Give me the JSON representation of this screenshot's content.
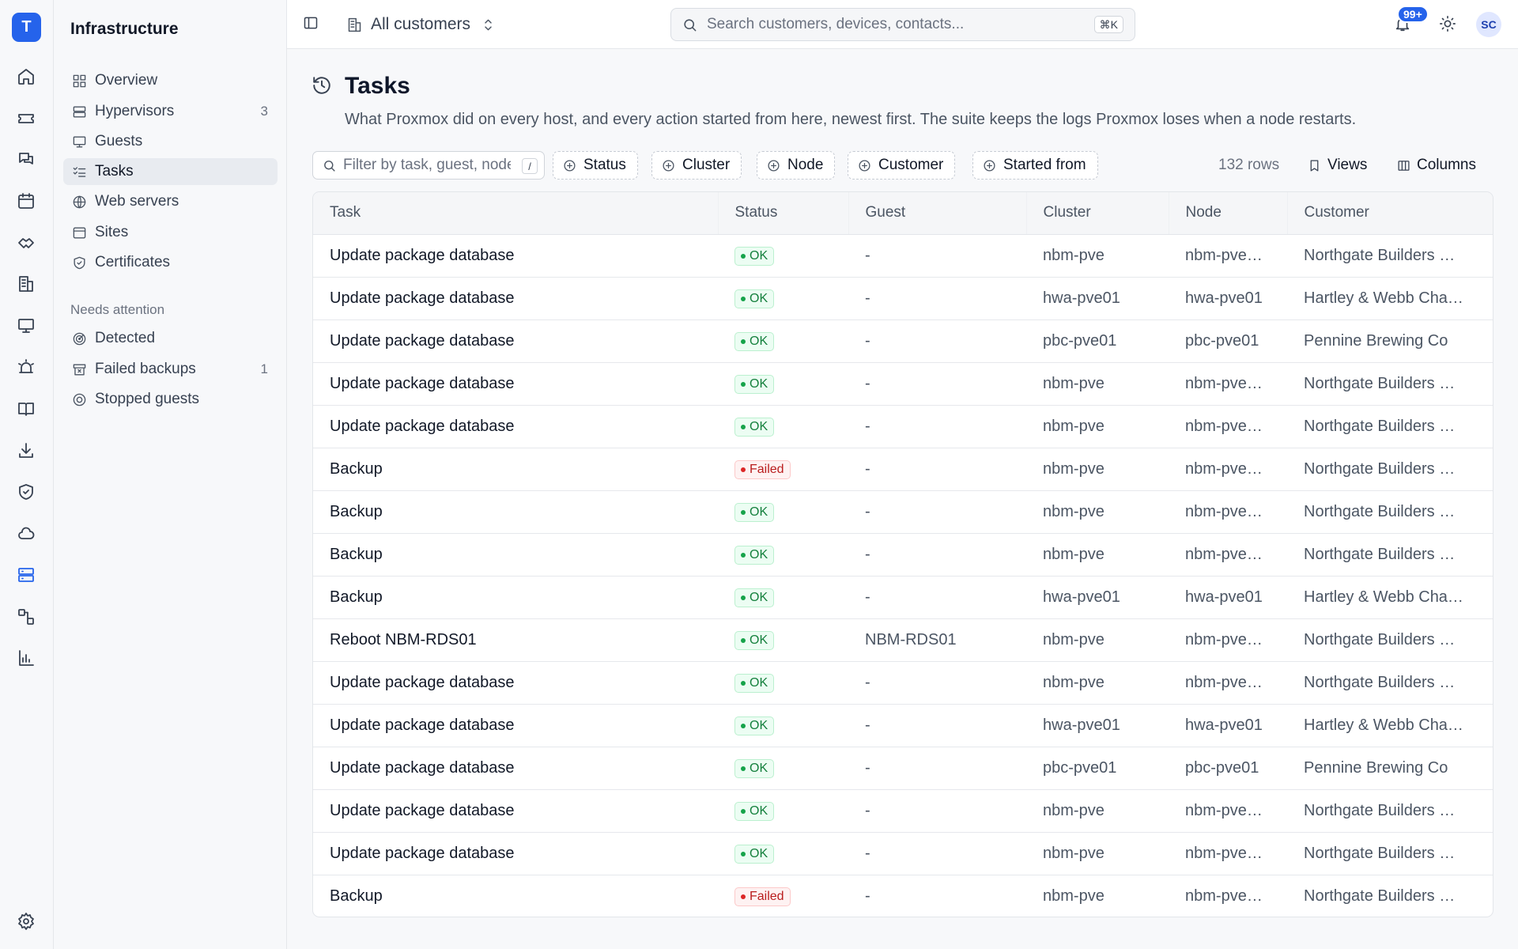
{
  "app": {
    "logo_letter": "T"
  },
  "sidebar": {
    "title": "Infrastructure",
    "items": [
      {
        "label": "Overview",
        "icon": "grid-icon",
        "count": ""
      },
      {
        "label": "Hypervisors",
        "icon": "server-icon",
        "count": "3"
      },
      {
        "label": "Guests",
        "icon": "monitor-icon",
        "count": ""
      },
      {
        "label": "Tasks",
        "icon": "checklist-icon",
        "count": "",
        "active": true
      },
      {
        "label": "Web servers",
        "icon": "globe-icon",
        "count": ""
      },
      {
        "label": "Sites",
        "icon": "browser-icon",
        "count": ""
      },
      {
        "label": "Certificates",
        "icon": "shield-check-icon",
        "count": ""
      }
    ],
    "section_label": "Needs attention",
    "attention_items": [
      {
        "label": "Detected",
        "icon": "radar-icon",
        "count": ""
      },
      {
        "label": "Failed backups",
        "icon": "archive-x-icon",
        "count": "1"
      },
      {
        "label": "Stopped guests",
        "icon": "stop-circle-icon",
        "count": ""
      }
    ]
  },
  "topbar": {
    "customer_switch": "All customers",
    "search_placeholder": "Search customers, devices, contacts...",
    "search_shortcut": "⌘K",
    "notification_count": "99+",
    "avatar_initials": "SC"
  },
  "page": {
    "title": "Tasks",
    "description": "What Proxmox did on every host, and every action started from here, newest first. The suite keeps the logs Proxmox loses when a node restarts."
  },
  "filters": {
    "filter_placeholder": "Filter by task, guest, node...",
    "filter_shortcut": "/",
    "chips": [
      "Status",
      "Cluster",
      "Node",
      "Customer",
      "Started from"
    ],
    "row_count": "132 rows",
    "views_label": "Views",
    "columns_label": "Columns"
  },
  "table": {
    "headers": {
      "task": "Task",
      "status": "Status",
      "guest": "Guest",
      "cluster": "Cluster",
      "node": "Node",
      "customer": "Customer"
    },
    "rows": [
      {
        "task": "Update package database",
        "status": "OK",
        "guest": "-",
        "cluster": "nbm-pve",
        "node": "nbm-pve…",
        "customer": "Northgate Builders …"
      },
      {
        "task": "Update package database",
        "status": "OK",
        "guest": "-",
        "cluster": "hwa-pve01",
        "node": "hwa-pve01",
        "customer": "Hartley & Webb Cha…"
      },
      {
        "task": "Update package database",
        "status": "OK",
        "guest": "-",
        "cluster": "pbc-pve01",
        "node": "pbc-pve01",
        "customer": "Pennine Brewing Co"
      },
      {
        "task": "Update package database",
        "status": "OK",
        "guest": "-",
        "cluster": "nbm-pve",
        "node": "nbm-pve…",
        "customer": "Northgate Builders …"
      },
      {
        "task": "Update package database",
        "status": "OK",
        "guest": "-",
        "cluster": "nbm-pve",
        "node": "nbm-pve…",
        "customer": "Northgate Builders …"
      },
      {
        "task": "Backup",
        "status": "Failed",
        "guest": "-",
        "cluster": "nbm-pve",
        "node": "nbm-pve…",
        "customer": "Northgate Builders …"
      },
      {
        "task": "Backup",
        "status": "OK",
        "guest": "-",
        "cluster": "nbm-pve",
        "node": "nbm-pve…",
        "customer": "Northgate Builders …"
      },
      {
        "task": "Backup",
        "status": "OK",
        "guest": "-",
        "cluster": "nbm-pve",
        "node": "nbm-pve…",
        "customer": "Northgate Builders …"
      },
      {
        "task": "Backup",
        "status": "OK",
        "guest": "-",
        "cluster": "hwa-pve01",
        "node": "hwa-pve01",
        "customer": "Hartley & Webb Cha…"
      },
      {
        "task": "Reboot NBM-RDS01",
        "status": "OK",
        "guest": "NBM-RDS01",
        "cluster": "nbm-pve",
        "node": "nbm-pve…",
        "customer": "Northgate Builders …"
      },
      {
        "task": "Update package database",
        "status": "OK",
        "guest": "-",
        "cluster": "nbm-pve",
        "node": "nbm-pve…",
        "customer": "Northgate Builders …"
      },
      {
        "task": "Update package database",
        "status": "OK",
        "guest": "-",
        "cluster": "hwa-pve01",
        "node": "hwa-pve01",
        "customer": "Hartley & Webb Cha…"
      },
      {
        "task": "Update package database",
        "status": "OK",
        "guest": "-",
        "cluster": "pbc-pve01",
        "node": "pbc-pve01",
        "customer": "Pennine Brewing Co"
      },
      {
        "task": "Update package database",
        "status": "OK",
        "guest": "-",
        "cluster": "nbm-pve",
        "node": "nbm-pve…",
        "customer": "Northgate Builders …"
      },
      {
        "task": "Update package database",
        "status": "OK",
        "guest": "-",
        "cluster": "nbm-pve",
        "node": "nbm-pve…",
        "customer": "Northgate Builders …"
      },
      {
        "task": "Backup",
        "status": "Failed",
        "guest": "-",
        "cluster": "nbm-pve",
        "node": "nbm-pve…",
        "customer": "Northgate Builders …"
      }
    ]
  },
  "colors": {
    "accent": "#2563eb",
    "ok": "#16a34a",
    "failed": "#dc2626"
  }
}
